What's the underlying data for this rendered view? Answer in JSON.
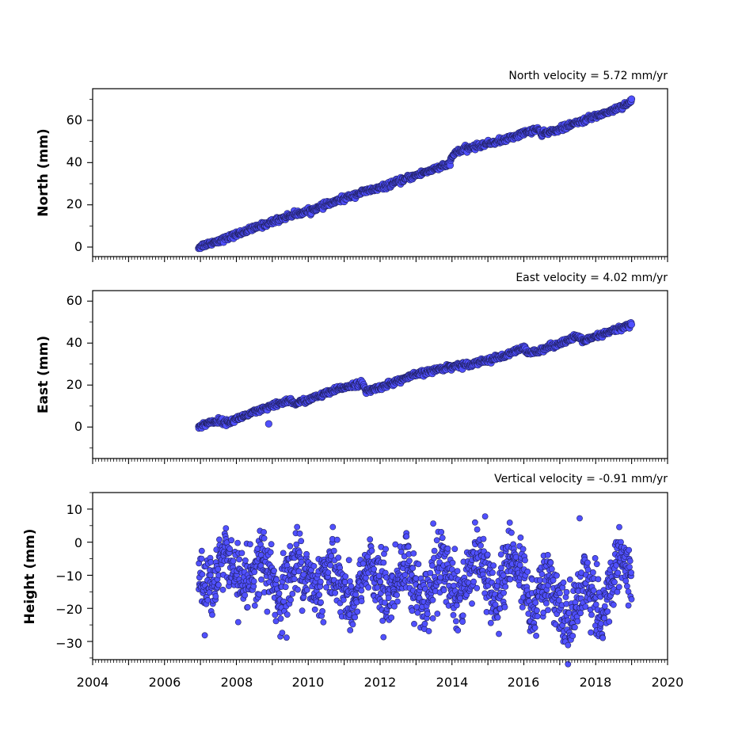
{
  "chart_data": [
    {
      "type": "scatter",
      "title": "North velocity = 5.72 mm/yr",
      "ylabel": "North (mm)",
      "xlim": [
        2004,
        2020
      ],
      "ylim": [
        -4.5,
        75
      ],
      "yticks": [
        0,
        20,
        40,
        60
      ],
      "xticks": [],
      "marker_color": "#5050ff",
      "edge_color": "#202060",
      "series": [
        {
          "x": [
            2006.95,
            2007.1,
            2007.3,
            2007.5,
            2007.7,
            2008.0,
            2008.5,
            2009.0,
            2009.5,
            2010.0,
            2010.5,
            2011.0,
            2011.5,
            2012.0,
            2012.5,
            2013.0,
            2013.5,
            2013.9,
            2014.0,
            2014.1,
            2014.5,
            2015.0,
            2015.5,
            2016.0,
            2016.4,
            2016.5,
            2016.6,
            2017.0,
            2017.5,
            2018.0,
            2018.5,
            2019.0
          ],
          "y": [
            0,
            1,
            2,
            3,
            4,
            6,
            9,
            12,
            15,
            17,
            20,
            23,
            26,
            28,
            31,
            34,
            37,
            39,
            42,
            45,
            47,
            49,
            51,
            54,
            56,
            53,
            54,
            56,
            59,
            62,
            65,
            69
          ]
        }
      ]
    },
    {
      "type": "scatter",
      "title": "East velocity = 4.02 mm/yr",
      "ylabel": "East (mm)",
      "xlim": [
        2004,
        2020
      ],
      "ylim": [
        -15,
        65
      ],
      "yticks": [
        0,
        20,
        40,
        60
      ],
      "xticks": [],
      "marker_color": "#5050ff",
      "edge_color": "#202060",
      "outliers": {
        "x": [
          2008.9
        ],
        "y": [
          1.5
        ]
      },
      "series": [
        {
          "x": [
            2006.95,
            2007.2,
            2007.5,
            2007.8,
            2008.0,
            2008.5,
            2009.0,
            2009.5,
            2009.6,
            2010.0,
            2010.5,
            2011.0,
            2011.5,
            2011.6,
            2012.0,
            2012.5,
            2013.0,
            2013.5,
            2014.0,
            2014.5,
            2015.0,
            2015.5,
            2016.0,
            2016.1,
            2016.5,
            2017.0,
            2017.5,
            2017.7,
            2018.0,
            2018.5,
            2019.0
          ],
          "y": [
            0,
            2,
            3,
            2,
            4,
            7,
            10,
            13,
            11,
            13,
            16,
            19,
            21,
            17,
            19,
            22,
            25,
            27,
            29,
            30,
            32,
            34,
            38,
            35,
            37,
            40,
            43,
            41,
            43,
            46,
            49
          ]
        }
      ]
    },
    {
      "type": "scatter",
      "title": "Vertical velocity = -0.91 mm/yr",
      "ylabel": "Height (mm)",
      "xlim": [
        2004,
        2020
      ],
      "ylim": [
        -35.5,
        15
      ],
      "yticks": [
        10,
        0,
        -10,
        -20,
        -30
      ],
      "ytick_labels": [
        "10",
        "0",
        "−10",
        "−20",
        "−30"
      ],
      "xticks": [
        "2004",
        "2006",
        "2008",
        "2010",
        "2012",
        "2014",
        "2016",
        "2018",
        "2020"
      ],
      "marker_color": "#5050ff",
      "edge_color": "#202060",
      "series": [
        {
          "x": [
            2006.95,
            2007.3,
            2007.7,
            2008.2,
            2008.7,
            2009.2,
            2009.7,
            2010.2,
            2010.7,
            2011.2,
            2011.7,
            2012.2,
            2012.7,
            2013.2,
            2013.7,
            2014.2,
            2014.7,
            2015.2,
            2015.7,
            2016.2,
            2016.7,
            2017.2,
            2017.7,
            2018.2,
            2018.7,
            2019.0
          ],
          "y": [
            -10,
            -15,
            -3,
            -15,
            -4,
            -17,
            -5,
            -15,
            -7,
            -20,
            -6,
            -18,
            -5,
            -20,
            -6,
            -17,
            -3,
            -19,
            -2,
            -20,
            -10,
            -26,
            -12,
            -22,
            -5,
            -12
          ],
          "spread": 5
        }
      ]
    }
  ]
}
